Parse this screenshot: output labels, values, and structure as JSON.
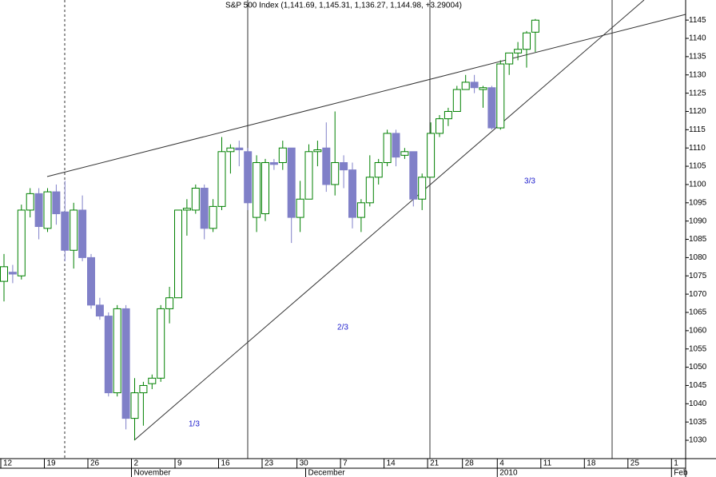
{
  "chart_data": {
    "type": "candlestick",
    "title": "S&P 500 Index (1,141.69, 1,145.31, 1,136.27, 1,144.98, +3.29004)",
    "categories": [
      "12",
      null,
      null,
      null,
      null,
      "19",
      null,
      null,
      null,
      null,
      "26",
      null,
      null,
      null,
      null,
      "2",
      null,
      null,
      null,
      null,
      "9",
      null,
      null,
      null,
      null,
      "16",
      null,
      null,
      null,
      null,
      "23",
      null,
      null,
      null,
      "30",
      null,
      null,
      null,
      null,
      "7",
      null,
      null,
      null,
      null,
      "14",
      null,
      null,
      null,
      null,
      "21",
      null,
      null,
      null,
      "28",
      null,
      null,
      null,
      "4",
      null,
      null,
      null,
      null,
      "11",
      null,
      null,
      null,
      null,
      "18",
      null,
      null,
      null,
      null,
      "25",
      null,
      null,
      null,
      null,
      "1",
      null
    ],
    "months": [
      null,
      null,
      null,
      null,
      null,
      null,
      null,
      null,
      null,
      null,
      null,
      null,
      null,
      null,
      null,
      "November",
      null,
      null,
      null,
      null,
      null,
      null,
      null,
      null,
      null,
      null,
      null,
      null,
      null,
      null,
      null,
      null,
      null,
      null,
      null,
      "December",
      null,
      null,
      null,
      null,
      null,
      null,
      null,
      null,
      null,
      null,
      null,
      null,
      null,
      null,
      null,
      null,
      null,
      null,
      null,
      null,
      null,
      "2010",
      null,
      null,
      null,
      null,
      null,
      null,
      null,
      null,
      null,
      null,
      null,
      null,
      null,
      null,
      null,
      null,
      null,
      null,
      null,
      "Feb",
      null
    ],
    "open": [
      1073.5,
      1076,
      1075,
      1093,
      1097.5,
      1088,
      1098,
      1092.5,
      1082,
      1093,
      1080,
      1067,
      1064,
      1043,
      1066,
      1036,
      1043,
      1045.5,
      1047,
      1066,
      1069,
      1093,
      1093,
      1099,
      1088,
      1094,
      1109,
      1110,
      1109,
      1091,
      1092,
      1106,
      1106,
      1110,
      1091,
      1096,
      1109,
      1110,
      1100,
      1106,
      1104,
      1091,
      1095,
      1102,
      1106,
      1114,
      1108,
      1109,
      1096,
      1102,
      1114,
      1118,
      1120,
      1126,
      1128,
      1126,
      1126.5,
      1115.5,
      1133,
      1136,
      1137,
      1141.69,
      null,
      null,
      null,
      null,
      null,
      null,
      null,
      null,
      null,
      null,
      null,
      null,
      null,
      null,
      null,
      null,
      null
    ],
    "high": [
      1081,
      1078,
      1094.5,
      1099,
      1099,
      1099,
      1100,
      1101,
      1095,
      1097,
      1081,
      1069,
      1065,
      1067,
      1067,
      1047,
      1046,
      1048,
      1067,
      1072,
      1093,
      1096,
      1100,
      1100,
      1096,
      1113,
      1111,
      1112,
      1110,
      1108,
      1107,
      1107,
      1112,
      1110,
      1101,
      1111,
      1112,
      1117,
      1120,
      1108,
      1106,
      1096,
      1108,
      1107,
      1115,
      1115,
      1110,
      1109,
      1103,
      1117,
      1119,
      1121,
      1127,
      1130,
      1130,
      1127,
      1127,
      1134,
      1136,
      1139,
      1142,
      1145.31,
      null,
      null,
      null,
      null,
      null,
      null,
      null,
      null,
      null,
      null,
      null,
      null,
      null,
      null,
      null,
      null,
      null
    ],
    "low": [
      1068,
      1073,
      1074,
      1091,
      1085,
      1087,
      1089,
      1079,
      1077,
      1079,
      1066,
      1063,
      1042,
      1042,
      1033,
      1030,
      1034,
      1044,
      1046,
      1062,
      1069,
      1086,
      1092,
      1085,
      1087,
      1093,
      1103,
      1105,
      1093,
      1087,
      1090,
      1104,
      1104,
      1084,
      1087,
      1096,
      1105,
      1098,
      1097,
      1099,
      1088,
      1087,
      1094,
      1100,
      1105,
      1105,
      1107,
      1094,
      1093,
      1102,
      1113,
      1116,
      1120,
      1126,
      1125,
      1121,
      1115,
      1115,
      1130,
      1134,
      1132,
      1136.27,
      null,
      null,
      null,
      null,
      null,
      null,
      null,
      null,
      null,
      null,
      null,
      null,
      null,
      null,
      null,
      null,
      null
    ],
    "close": [
      1077.5,
      1075.5,
      1093,
      1097.5,
      1088.5,
      1098,
      1092,
      1082,
      1093,
      1080,
      1067,
      1064,
      1043,
      1066,
      1036,
      1043,
      1045,
      1047,
      1066,
      1069,
      1093,
      1093.5,
      1099,
      1088,
      1094,
      1109,
      1110,
      1109.5,
      1095,
      1106,
      1106,
      1105.5,
      1110,
      1091,
      1096,
      1109,
      1109.5,
      1100,
      1106,
      1104,
      1091,
      1095,
      1102,
      1106,
      1114,
      1107.5,
      1109,
      1096,
      1102,
      1114,
      1118,
      1120,
      1126,
      1128,
      1126.5,
      1126.5,
      1115.5,
      1133,
      1136,
      1137,
      1141.5,
      1144.98,
      null,
      null,
      null,
      null,
      null,
      null,
      null,
      null,
      null,
      null,
      null,
      null,
      null,
      null,
      null,
      null,
      null
    ],
    "up_color": "#008000",
    "down_color": "#8080c8",
    "ylim": [
      1025.2,
      1150.5
    ],
    "yticks": [
      1030,
      1035,
      1040,
      1045,
      1050,
      1055,
      1060,
      1065,
      1070,
      1075,
      1080,
      1085,
      1090,
      1095,
      1100,
      1105,
      1110,
      1115,
      1120,
      1125,
      1130,
      1135,
      1140,
      1145
    ],
    "annotations": [
      "1/3",
      "2/3",
      "3/3"
    ]
  }
}
